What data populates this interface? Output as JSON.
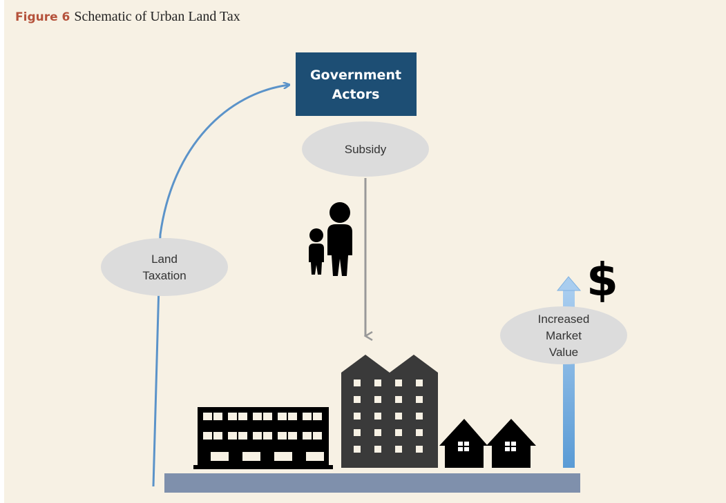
{
  "figure": {
    "label": "Figure 6",
    "caption": "Schematic of Urban Land Tax"
  },
  "nodes": [
    {
      "lines": [
        "Government",
        "Actors"
      ]
    },
    {
      "lines": [
        "Subsidy"
      ]
    },
    {
      "lines": [
        "Land",
        "Taxation"
      ]
    },
    {
      "lines": [
        "Increased",
        "Market",
        "Value"
      ]
    }
  ],
  "symbol": "$"
}
